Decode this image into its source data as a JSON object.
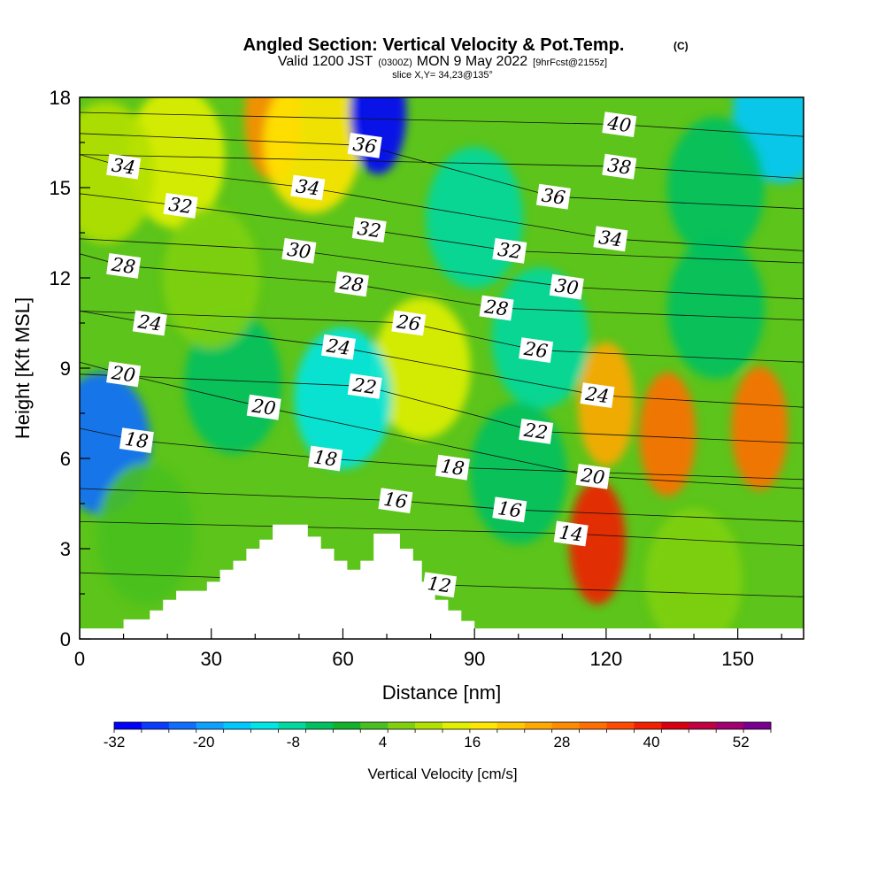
{
  "chart_data": {
    "type": "heatmap",
    "title": "Angled Section: Vertical Velocity & Pot.Temp.",
    "title_mark": "(C)",
    "subtitle_main_a": "Valid 1200 JST",
    "subtitle_small_a": "(0300Z)",
    "subtitle_main_b": "MON 9 May 2022",
    "subtitle_small_b": "[9hrFcst@2155z]",
    "subtitle2": "slice X,Y= 34,23@135°",
    "xlabel": "Distance [nm]",
    "ylabel": "Height [Kft MSL]",
    "xlim": [
      0,
      165
    ],
    "ylim": [
      0,
      18
    ],
    "x_ticks": [
      0,
      30,
      60,
      90,
      120,
      150
    ],
    "y_ticks": [
      0,
      3,
      6,
      9,
      12,
      15,
      18
    ],
    "colorbar": {
      "label": "Vertical Velocity [cm/s]",
      "min": -32,
      "max": 56,
      "step": 4,
      "tick_values": [
        -32,
        -20,
        -8,
        4,
        16,
        28,
        40,
        52
      ],
      "colors": [
        "#0000ff",
        "#0a3cff",
        "#0f6dff",
        "#0ea0ff",
        "#00c8ff",
        "#00e6e6",
        "#00d8a0",
        "#00c060",
        "#12b22a",
        "#48c020",
        "#80d010",
        "#b4e000",
        "#e0f000",
        "#ffe600",
        "#ffc800",
        "#ffa800",
        "#ff8c00",
        "#ff6e00",
        "#ff4a00",
        "#f02000",
        "#d80010",
        "#c00040",
        "#a00070",
        "#780090"
      ]
    },
    "theta_contours": [
      {
        "label": "12",
        "x": 82,
        "y": 1.8
      },
      {
        "label": "14",
        "x": 112,
        "y": 3.5
      },
      {
        "label": "16",
        "x": 72,
        "y": 4.6
      },
      {
        "label": "16",
        "x": 98,
        "y": 4.3
      },
      {
        "label": "18",
        "x": 13,
        "y": 6.6
      },
      {
        "label": "18",
        "x": 56,
        "y": 6.0
      },
      {
        "label": "18",
        "x": 85,
        "y": 5.7
      },
      {
        "label": "20",
        "x": 10,
        "y": 8.8
      },
      {
        "label": "20",
        "x": 42,
        "y": 7.7
      },
      {
        "label": "20",
        "x": 117,
        "y": 5.4
      },
      {
        "label": "22",
        "x": 65,
        "y": 8.4
      },
      {
        "label": "22",
        "x": 104,
        "y": 6.9
      },
      {
        "label": "24",
        "x": 16,
        "y": 10.5
      },
      {
        "label": "24",
        "x": 59,
        "y": 9.7
      },
      {
        "label": "24",
        "x": 118,
        "y": 8.1
      },
      {
        "label": "26",
        "x": 75,
        "y": 10.5
      },
      {
        "label": "26",
        "x": 104,
        "y": 9.6
      },
      {
        "label": "28",
        "x": 10,
        "y": 12.4
      },
      {
        "label": "28",
        "x": 62,
        "y": 11.8
      },
      {
        "label": "28",
        "x": 95,
        "y": 11.0
      },
      {
        "label": "30",
        "x": 50,
        "y": 12.9
      },
      {
        "label": "30",
        "x": 111,
        "y": 11.7
      },
      {
        "label": "32",
        "x": 23,
        "y": 14.4
      },
      {
        "label": "32",
        "x": 66,
        "y": 13.6
      },
      {
        "label": "32",
        "x": 98,
        "y": 12.9
      },
      {
        "label": "34",
        "x": 10,
        "y": 15.7
      },
      {
        "label": "34",
        "x": 52,
        "y": 15.0
      },
      {
        "label": "34",
        "x": 121,
        "y": 13.3
      },
      {
        "label": "36",
        "x": 65,
        "y": 16.4
      },
      {
        "label": "36",
        "x": 108,
        "y": 14.7
      },
      {
        "label": "38",
        "x": 123,
        "y": 15.7
      },
      {
        "label": "40",
        "x": 123,
        "y": 17.1
      }
    ],
    "terrain_kft": [
      [
        0,
        0.35
      ],
      [
        10,
        0.35
      ],
      [
        10,
        0.65
      ],
      [
        16,
        0.65
      ],
      [
        16,
        0.95
      ],
      [
        19,
        0.95
      ],
      [
        19,
        1.3
      ],
      [
        22,
        1.3
      ],
      [
        22,
        1.6
      ],
      [
        29,
        1.6
      ],
      [
        29,
        1.9
      ],
      [
        32,
        1.9
      ],
      [
        32,
        2.3
      ],
      [
        35,
        2.3
      ],
      [
        35,
        2.6
      ],
      [
        38,
        2.6
      ],
      [
        38,
        3.0
      ],
      [
        41,
        3.0
      ],
      [
        41,
        3.3
      ],
      [
        44,
        3.3
      ],
      [
        44,
        3.8
      ],
      [
        52,
        3.8
      ],
      [
        52,
        3.4
      ],
      [
        55,
        3.4
      ],
      [
        55,
        3.0
      ],
      [
        58,
        3.0
      ],
      [
        58,
        2.6
      ],
      [
        61,
        2.6
      ],
      [
        61,
        2.3
      ],
      [
        64,
        2.3
      ],
      [
        64,
        2.6
      ],
      [
        67,
        2.6
      ],
      [
        67,
        3.5
      ],
      [
        73,
        3.5
      ],
      [
        73,
        3.0
      ],
      [
        76,
        3.0
      ],
      [
        76,
        2.6
      ],
      [
        78,
        2.6
      ],
      [
        78,
        1.9
      ],
      [
        81,
        1.9
      ],
      [
        81,
        1.3
      ],
      [
        84,
        1.3
      ],
      [
        84,
        0.95
      ],
      [
        87,
        0.95
      ],
      [
        87,
        0.6
      ],
      [
        90,
        0.6
      ],
      [
        90,
        0.35
      ],
      [
        165,
        0.35
      ]
    ],
    "velocity_features": [
      {
        "x": 118,
        "y": 3.2,
        "value": 44
      },
      {
        "x": 120,
        "y": 7.8,
        "value": 30
      },
      {
        "x": 134,
        "y": 6.8,
        "value": 38
      },
      {
        "x": 155,
        "y": 7.0,
        "value": 36
      },
      {
        "x": 44,
        "y": 17.3,
        "value": 34
      },
      {
        "x": 53,
        "y": 16.5,
        "value": 22
      },
      {
        "x": 22,
        "y": 16.0,
        "value": 16
      },
      {
        "x": 78,
        "y": 9.0,
        "value": 18
      },
      {
        "x": 6,
        "y": 15.5,
        "value": 14
      },
      {
        "x": 68,
        "y": 17.5,
        "value": -30
      },
      {
        "x": 5,
        "y": 6.5,
        "value": -22
      },
      {
        "x": 160,
        "y": 17.5,
        "value": -14
      },
      {
        "x": 90,
        "y": 14.0,
        "value": -6
      },
      {
        "x": 145,
        "y": 15.0,
        "value": -4
      },
      {
        "x": 60,
        "y": 8.0,
        "value": -10
      },
      {
        "x": 105,
        "y": 10.0,
        "value": -6
      },
      {
        "x": 35,
        "y": 8.5,
        "value": -2
      },
      {
        "x": 100,
        "y": 5.5,
        "value": -4
      },
      {
        "x": 145,
        "y": 11.0,
        "value": -2
      },
      {
        "x": 15,
        "y": 3.5,
        "value": 6
      },
      {
        "x": 30,
        "y": 12.0,
        "value": 8
      },
      {
        "x": 140,
        "y": 2.0,
        "value": 8
      }
    ]
  }
}
